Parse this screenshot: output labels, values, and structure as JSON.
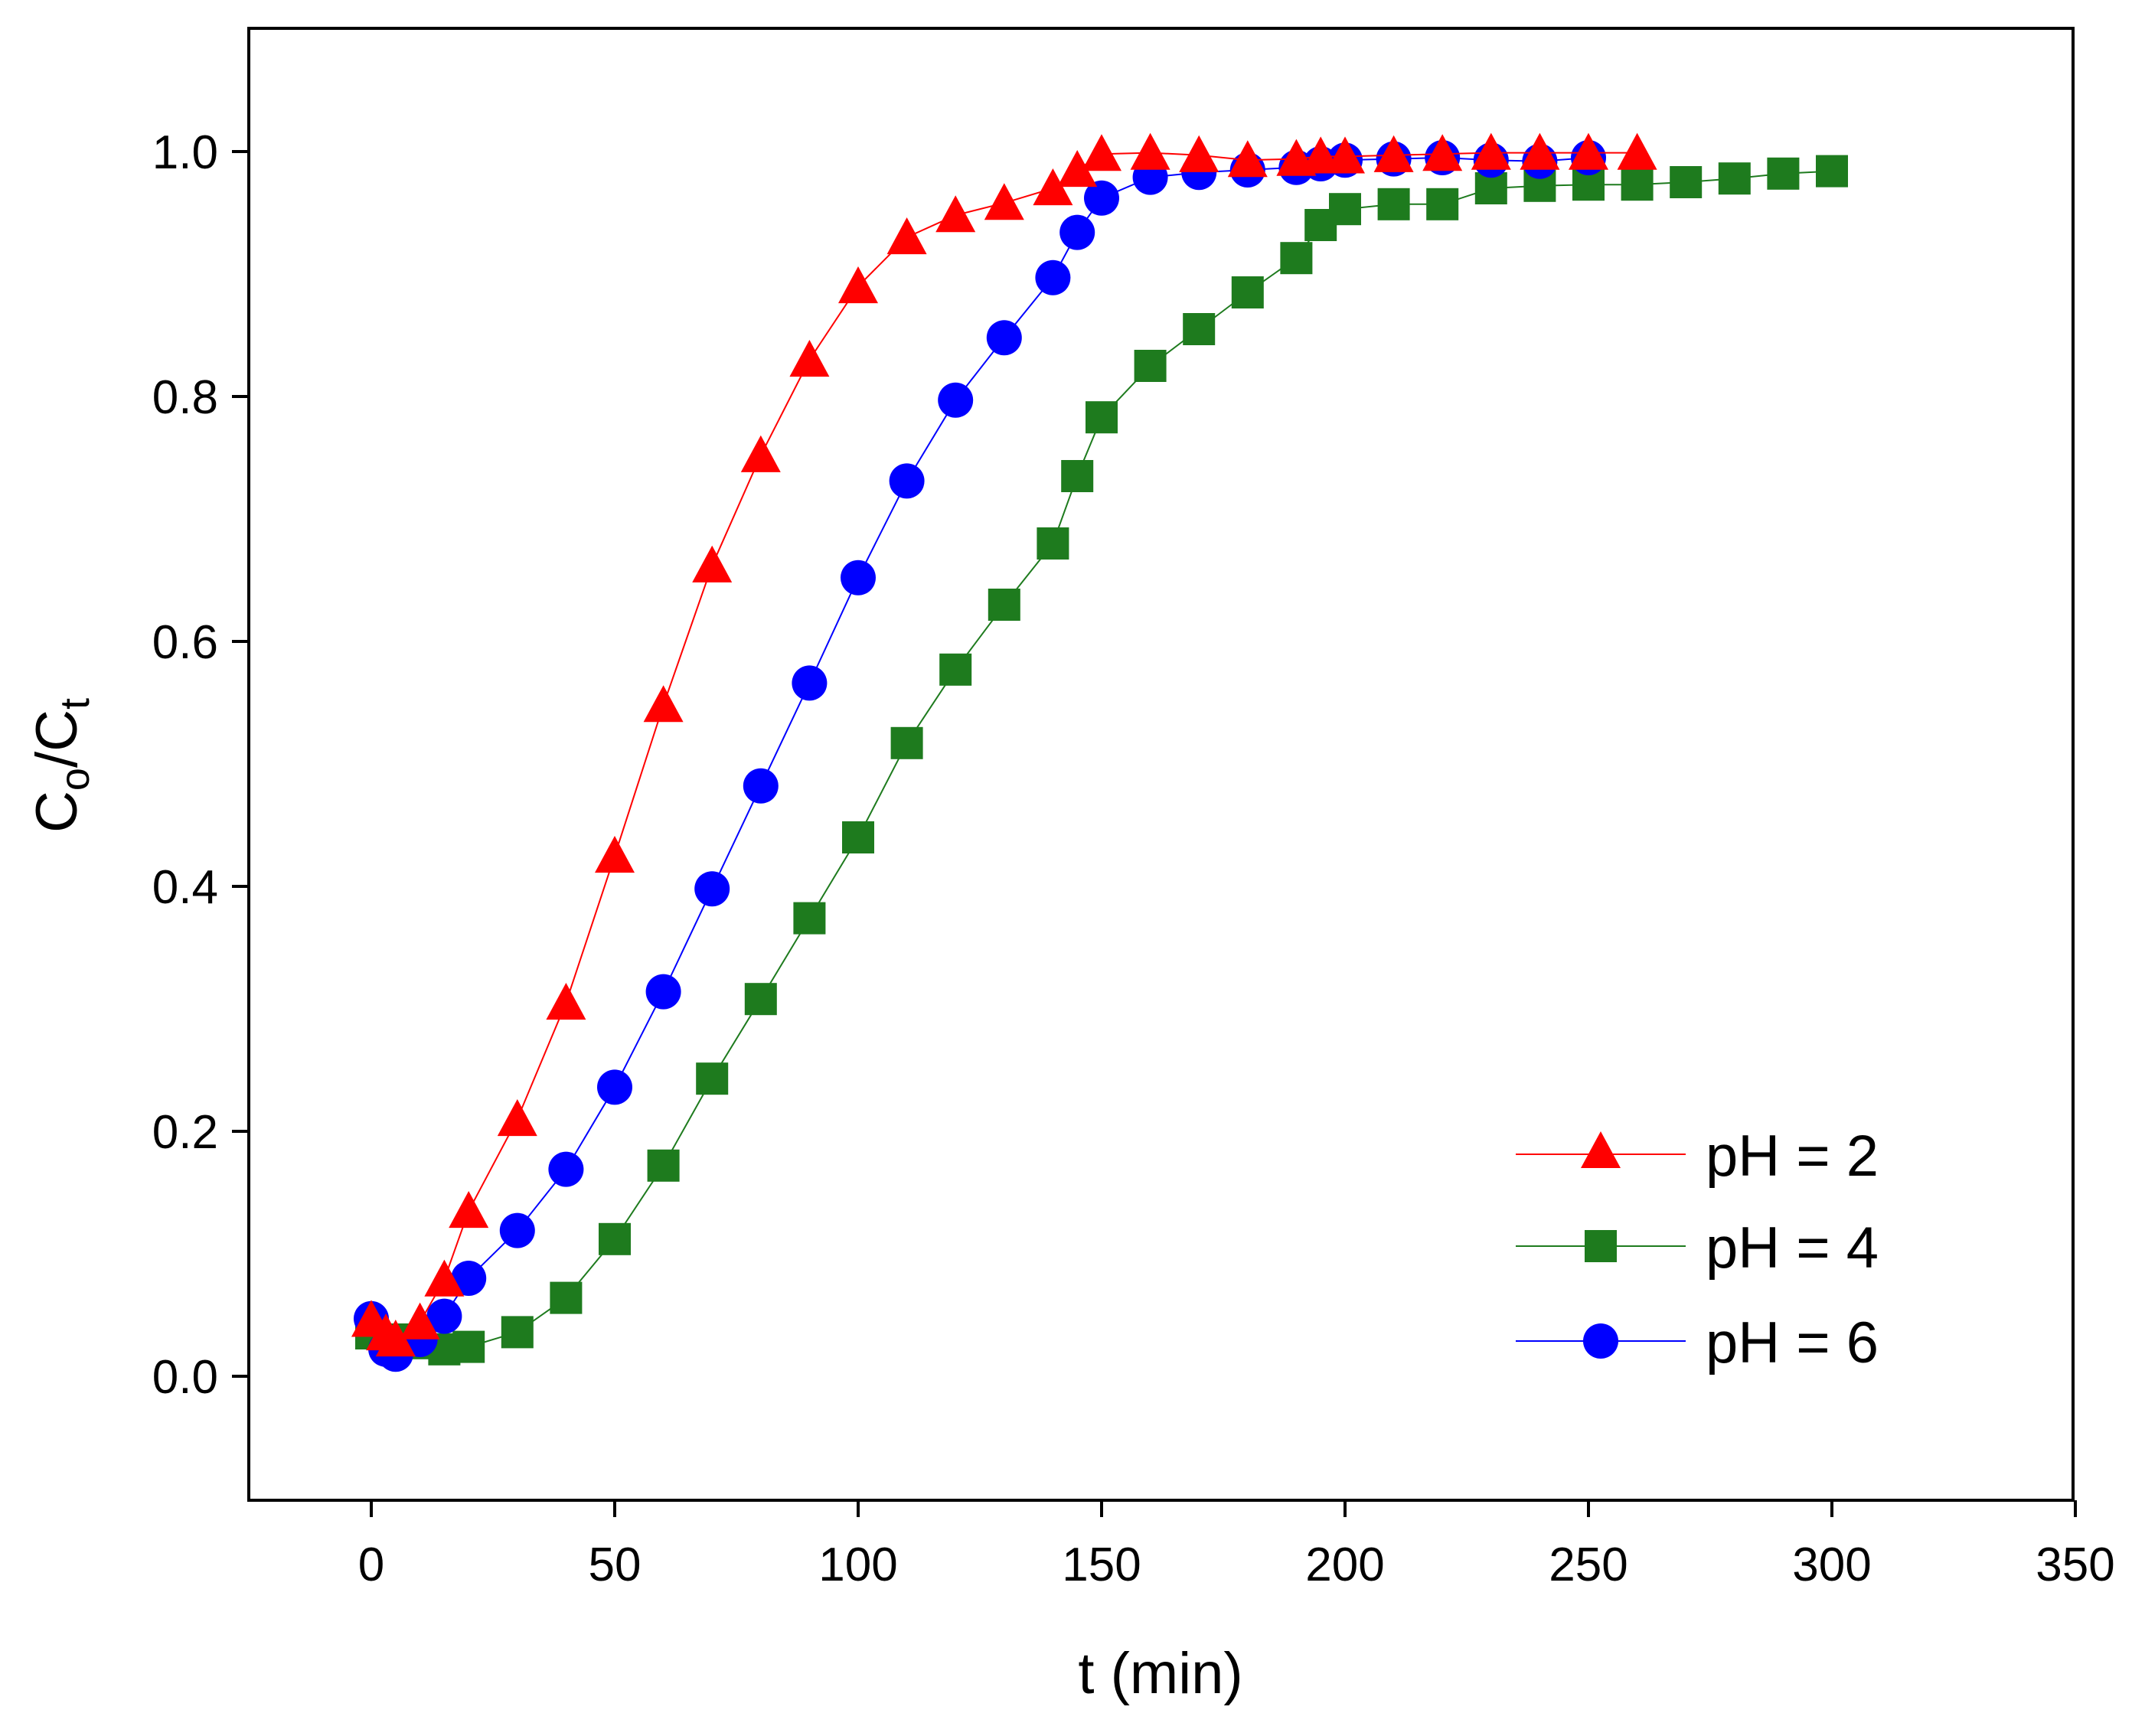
{
  "chart_data": {
    "type": "scatter",
    "title": "",
    "xlabel": "t (min)",
    "ylabel_main": "C",
    "ylabel_sub1": "o",
    "ylabel_sep": "/C",
    "ylabel_sub2": "t",
    "xlim": [
      -25,
      350
    ],
    "ylim": [
      -0.1,
      1.1
    ],
    "xticks": [
      0,
      50,
      100,
      150,
      200,
      250,
      300,
      350
    ],
    "xtick_labels": [
      "0",
      "50",
      "100",
      "150",
      "200",
      "250",
      "300",
      "350"
    ],
    "yticks": [
      0.0,
      0.2,
      0.4,
      0.6,
      0.8,
      1.0
    ],
    "ytick_labels": [
      "0.0",
      "0.2",
      "0.4",
      "0.6",
      "0.8",
      "1.0"
    ],
    "grid": false,
    "legend_position": "bottom-right",
    "series": [
      {
        "name": "pH = 2",
        "color": "#ff0000",
        "marker": "triangle",
        "x": [
          0,
          3,
          5,
          10,
          15,
          20,
          30,
          40,
          50,
          60,
          70,
          80,
          90,
          100,
          110,
          120,
          130,
          140,
          145,
          150,
          160,
          170,
          180,
          190,
          195,
          200,
          210,
          220,
          230,
          240,
          250,
          260
        ],
        "y": [
          0.046,
          0.035,
          0.03,
          0.044,
          0.079,
          0.135,
          0.21,
          0.305,
          0.425,
          0.548,
          0.662,
          0.752,
          0.83,
          0.89,
          0.93,
          0.948,
          0.958,
          0.97,
          0.985,
          0.998,
          0.999,
          0.997,
          0.993,
          0.994,
          0.996,
          0.996,
          0.997,
          0.998,
          0.999,
          0.999,
          0.999,
          0.999
        ]
      },
      {
        "name": "pH = 4",
        "color": "#1e7b1e",
        "marker": "square",
        "x": [
          0,
          5,
          10,
          15,
          20,
          30,
          40,
          50,
          60,
          70,
          80,
          90,
          100,
          110,
          120,
          130,
          140,
          145,
          150,
          160,
          170,
          180,
          190,
          195,
          200,
          210,
          220,
          230,
          240,
          250,
          260,
          270,
          280,
          290,
          300
        ],
        "y": [
          0.035,
          0.03,
          0.027,
          0.022,
          0.024,
          0.036,
          0.064,
          0.112,
          0.172,
          0.243,
          0.308,
          0.374,
          0.44,
          0.517,
          0.577,
          0.63,
          0.68,
          0.735,
          0.783,
          0.825,
          0.855,
          0.885,
          0.913,
          0.94,
          0.953,
          0.957,
          0.957,
          0.97,
          0.972,
          0.973,
          0.973,
          0.975,
          0.978,
          0.982,
          0.984
        ]
      },
      {
        "name": "pH = 6",
        "color": "#0000ff",
        "marker": "circle",
        "x": [
          0,
          3,
          5,
          10,
          15,
          20,
          30,
          40,
          50,
          60,
          70,
          80,
          90,
          100,
          110,
          120,
          130,
          140,
          145,
          150,
          160,
          170,
          180,
          190,
          195,
          200,
          210,
          220,
          230,
          240,
          250
        ],
        "y": [
          0.047,
          0.022,
          0.018,
          0.03,
          0.049,
          0.08,
          0.119,
          0.169,
          0.236,
          0.314,
          0.398,
          0.482,
          0.566,
          0.652,
          0.731,
          0.797,
          0.848,
          0.897,
          0.934,
          0.962,
          0.979,
          0.983,
          0.985,
          0.987,
          0.99,
          0.993,
          0.994,
          0.995,
          0.993,
          0.992,
          0.995
        ]
      }
    ]
  }
}
